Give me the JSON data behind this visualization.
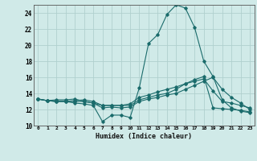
{
  "xlabel": "Humidex (Indice chaleur)",
  "background_color": "#d0eae8",
  "grid_color": "#b0d0ce",
  "line_color": "#1a6b6b",
  "xlim": [
    -0.5,
    23.5
  ],
  "ylim": [
    10,
    25
  ],
  "yticks": [
    10,
    12,
    14,
    16,
    18,
    20,
    22,
    24
  ],
  "xticks": [
    0,
    1,
    2,
    3,
    4,
    5,
    6,
    7,
    8,
    9,
    10,
    11,
    12,
    13,
    14,
    15,
    16,
    17,
    18,
    19,
    20,
    21,
    22,
    23
  ],
  "series": [
    [
      13.3,
      13.1,
      13.0,
      13.0,
      12.8,
      12.7,
      12.5,
      10.5,
      11.3,
      11.3,
      11.0,
      14.7,
      20.2,
      21.3,
      23.8,
      25.0,
      24.6,
      22.2,
      18.0,
      16.1,
      13.2,
      12.2,
      11.8,
      11.6
    ],
    [
      13.3,
      13.1,
      13.0,
      13.0,
      13.0,
      13.0,
      12.8,
      12.5,
      12.5,
      12.5,
      12.5,
      13.2,
      13.5,
      13.8,
      14.0,
      14.5,
      15.2,
      15.7,
      16.1,
      12.2,
      12.1,
      12.0,
      11.9,
      11.7
    ],
    [
      13.3,
      13.1,
      13.0,
      13.0,
      13.1,
      13.2,
      13.0,
      12.5,
      12.5,
      12.5,
      12.7,
      13.5,
      13.8,
      14.2,
      14.5,
      14.8,
      15.2,
      15.5,
      15.8,
      14.3,
      13.0,
      12.8,
      12.5,
      12.2
    ],
    [
      13.3,
      13.1,
      13.2,
      13.2,
      13.3,
      13.0,
      12.8,
      12.2,
      12.3,
      12.2,
      12.3,
      13.0,
      13.3,
      13.5,
      13.8,
      14.0,
      14.5,
      15.0,
      15.5,
      16.0,
      14.5,
      13.5,
      12.8,
      12.0
    ]
  ]
}
